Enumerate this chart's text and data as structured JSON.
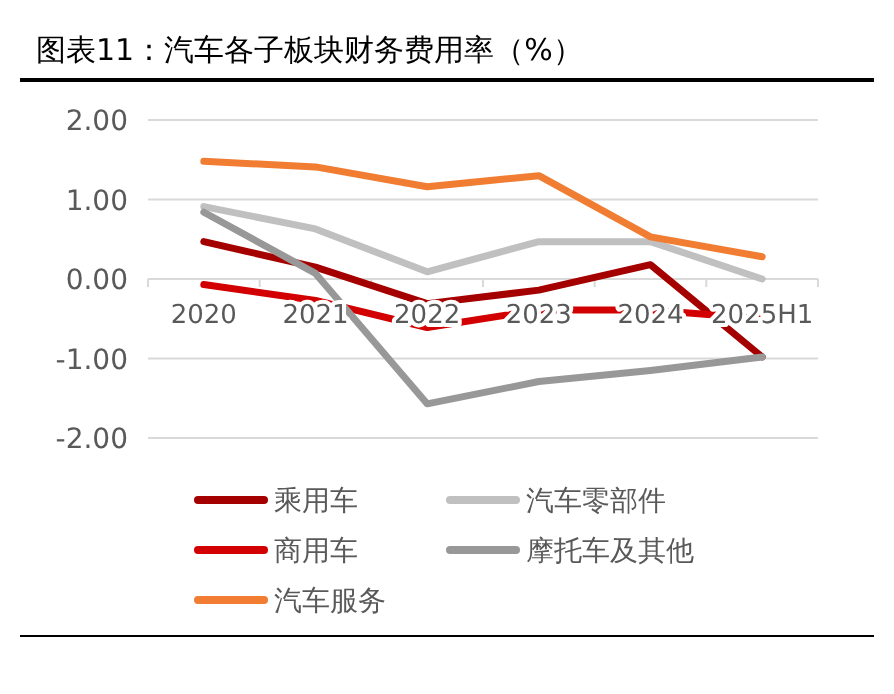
{
  "chart_data": {
    "type": "line",
    "title": "图表11：汽车各子板块财务费用率（%）",
    "categories": [
      "2020",
      "2021",
      "2022",
      "2023",
      "2024",
      "2025H1"
    ],
    "series": [
      {
        "name": "乘用车",
        "color": "#a50000",
        "values": [
          0.47,
          0.15,
          -0.31,
          -0.14,
          0.18,
          -0.98
        ]
      },
      {
        "name": "汽车零部件",
        "color": "#c0c0c0",
        "values": [
          0.91,
          0.63,
          0.09,
          0.47,
          0.47,
          0.0
        ]
      },
      {
        "name": "商用车",
        "color": "#d20000",
        "values": [
          -0.07,
          -0.27,
          -0.61,
          -0.39,
          -0.39,
          -0.5
        ]
      },
      {
        "name": "摩托车及其他",
        "color": "#989898",
        "values": [
          0.84,
          0.07,
          -1.57,
          -1.29,
          -1.15,
          -0.98
        ]
      },
      {
        "name": "汽车服务",
        "color": "#f07d32",
        "values": [
          1.48,
          1.41,
          1.16,
          1.3,
          0.53,
          0.28
        ]
      }
    ],
    "ylim": [
      -2,
      2
    ],
    "yticks": [
      {
        "value": -2,
        "label": "-2.00"
      },
      {
        "value": -1,
        "label": "-1.00"
      },
      {
        "value": 0,
        "label": "0.00"
      },
      {
        "value": 1,
        "label": "1.00"
      },
      {
        "value": 2,
        "label": "2.00"
      }
    ],
    "grid": "y",
    "legend": "bottom",
    "marker": "none",
    "line_style": "solid"
  }
}
